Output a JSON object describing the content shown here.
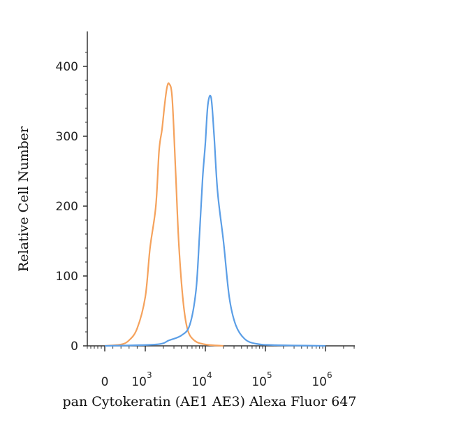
{
  "chart_data": {
    "type": "line",
    "xlabel": "pan Cytokeratin (AE1 AE3) Alexa Fluor 647",
    "ylabel": "Relative Cell Number",
    "ylim": [
      0,
      420
    ],
    "y_ticks": [
      "0",
      "100",
      "200",
      "300",
      "400"
    ],
    "x_ticks": [
      {
        "base": "0",
        "exp": ""
      },
      {
        "base": "10",
        "exp": "3"
      },
      {
        "base": "10",
        "exp": "4"
      },
      {
        "base": "10",
        "exp": "5"
      },
      {
        "base": "10",
        "exp": "6"
      }
    ],
    "x_scale": "biexponential (log, with 0 decade)",
    "series": [
      {
        "color": "#f5a25c",
        "x": [
          "0",
          "400",
          "600",
          "800",
          "1000",
          "1200",
          "1500",
          "1700",
          "1900",
          "2100",
          "2300",
          "2500",
          "2800",
          "3200",
          "3600",
          "4200",
          "5000",
          "6500",
          "10000",
          "20000"
        ],
        "values": [
          0,
          2,
          8,
          25,
          70,
          140,
          200,
          280,
          310,
          345,
          370,
          375,
          355,
          250,
          150,
          70,
          25,
          8,
          2,
          0
        ]
      },
      {
        "color": "#5b9ee6",
        "x": [
          "0",
          "1500",
          "2500",
          "4000",
          "5500",
          "7000",
          "8000",
          "9000",
          "10000",
          "11000",
          "12500",
          "14000",
          "16000",
          "20000",
          "25000",
          "32000",
          "45000",
          "70000",
          "150000",
          "1000000"
        ],
        "values": [
          0,
          2,
          8,
          15,
          30,
          80,
          160,
          240,
          290,
          345,
          355,
          300,
          220,
          150,
          70,
          30,
          10,
          3,
          1,
          0
        ]
      }
    ]
  }
}
